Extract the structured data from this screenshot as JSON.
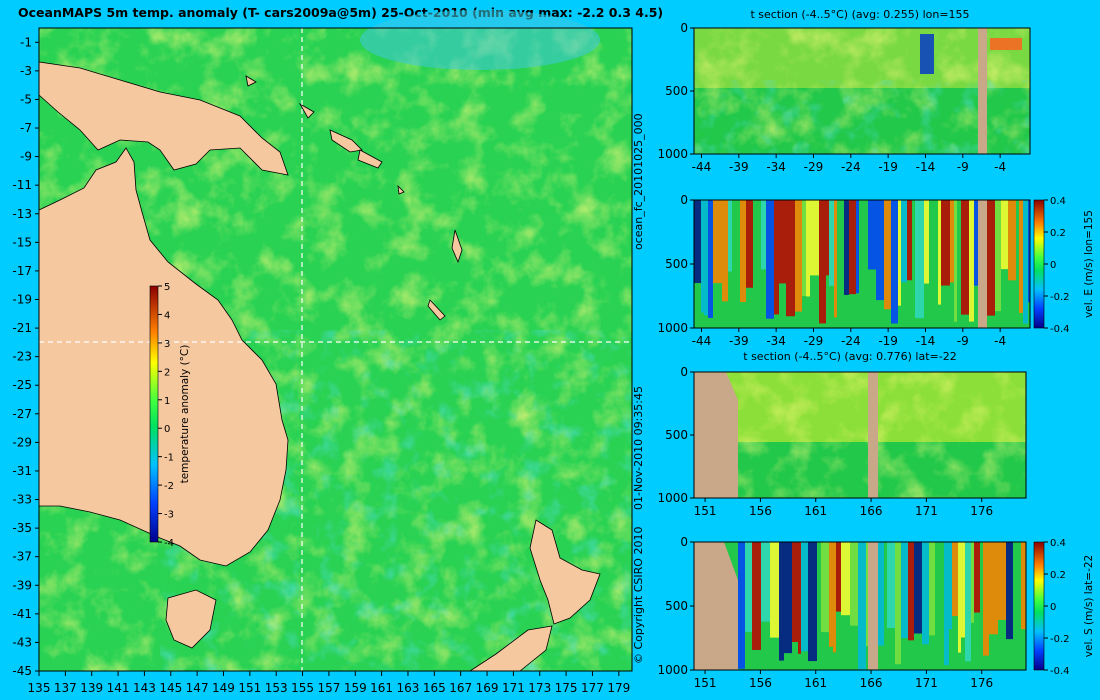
{
  "main_title": "OceanMAPS 5m temp. anomaly (T- cars2009a@5m) 25-Oct-2010 (min avg max: -2.2 0.3 4.5)",
  "side_label_run": "ocean_fc_20101025_000",
  "side_label_date": "01-Nov-2010 09:35:45",
  "side_label_copyright": "© Copyright CSIRO 2010",
  "colors": {
    "background": "#00ccff",
    "land": "#f5c8a0",
    "section_land": "#c8a888",
    "crosshair": "#ffffff"
  },
  "chart_data": [
    {
      "id": "map",
      "type": "heatmap",
      "title": "OceanMAPS 5m temp. anomaly (T- cars2009a@5m) 25-Oct-2010 (min avg max: -2.2 0.3 4.5)",
      "x_ticks": [
        "135",
        "137",
        "139",
        "141",
        "143",
        "145",
        "147",
        "149",
        "151",
        "153",
        "155",
        "157",
        "159",
        "161",
        "163",
        "165",
        "167",
        "169",
        "171",
        "173",
        "175",
        "177",
        "179"
      ],
      "y_ticks": [
        "-1",
        "-3",
        "-5",
        "-7",
        "-9",
        "-11",
        "-13",
        "-15",
        "-17",
        "-19",
        "-21",
        "-23",
        "-25",
        "-27",
        "-29",
        "-31",
        "-33",
        "-35",
        "-37",
        "-39",
        "-41",
        "-43",
        "-45"
      ],
      "xlim": [
        135,
        180
      ],
      "ylim": [
        -45,
        0
      ],
      "crosshair": {
        "lon": 155,
        "lat": -22
      },
      "colorbar": {
        "label": "temperature anomaly (°C)",
        "ticks": [
          "5",
          "4",
          "3",
          "2",
          "1",
          "0",
          "-1",
          "-2",
          "-3",
          "-4"
        ],
        "range": [
          -4,
          5
        ]
      },
      "stats": {
        "min": -2.2,
        "avg": 0.3,
        "max": 4.5
      }
    },
    {
      "id": "t_section_lon",
      "type": "heatmap",
      "title": "t section (-4..5°C) (avg: 0.255) lon=155",
      "x_ticks": [
        "-44",
        "-39",
        "-34",
        "-29",
        "-24",
        "-19",
        "-14",
        "-9",
        "-4"
      ],
      "y_ticks": [
        "0",
        "500",
        "1000"
      ],
      "xlim": [
        -45,
        0
      ],
      "ylim": [
        1000,
        0
      ]
    },
    {
      "id": "u_section_lon",
      "type": "heatmap",
      "title": "",
      "x_ticks": [
        "-44",
        "-39",
        "-34",
        "-29",
        "-24",
        "-19",
        "-14",
        "-9",
        "-4"
      ],
      "y_ticks": [
        "0",
        "500",
        "1000"
      ],
      "xlim": [
        -45,
        0
      ],
      "ylim": [
        1000,
        0
      ],
      "colorbar": {
        "label": "vel. E (m/s) lon=155",
        "ticks": [
          "0.4",
          "0.2",
          "0",
          "-0.2",
          "-0.4"
        ],
        "range": [
          -0.4,
          0.4
        ]
      }
    },
    {
      "id": "t_section_lat",
      "type": "heatmap",
      "title": "t section (-4..5°C) (avg: 0.776) lat=-22",
      "x_ticks": [
        "151",
        "156",
        "161",
        "166",
        "171",
        "176"
      ],
      "y_ticks": [
        "0",
        "500",
        "1000"
      ],
      "xlim": [
        150,
        180
      ],
      "ylim": [
        1000,
        0
      ]
    },
    {
      "id": "v_section_lat",
      "type": "heatmap",
      "title": "",
      "x_ticks": [
        "151",
        "156",
        "161",
        "166",
        "171",
        "176"
      ],
      "y_ticks": [
        "0",
        "500",
        "1000"
      ],
      "xlim": [
        150,
        180
      ],
      "ylim": [
        1000,
        0
      ],
      "colorbar": {
        "label": "vel. S (m/s) lat=-22",
        "ticks": [
          "0.4",
          "0.2",
          "0",
          "-0.2",
          "-0.4"
        ],
        "range": [
          -0.4,
          0.4
        ]
      }
    }
  ]
}
